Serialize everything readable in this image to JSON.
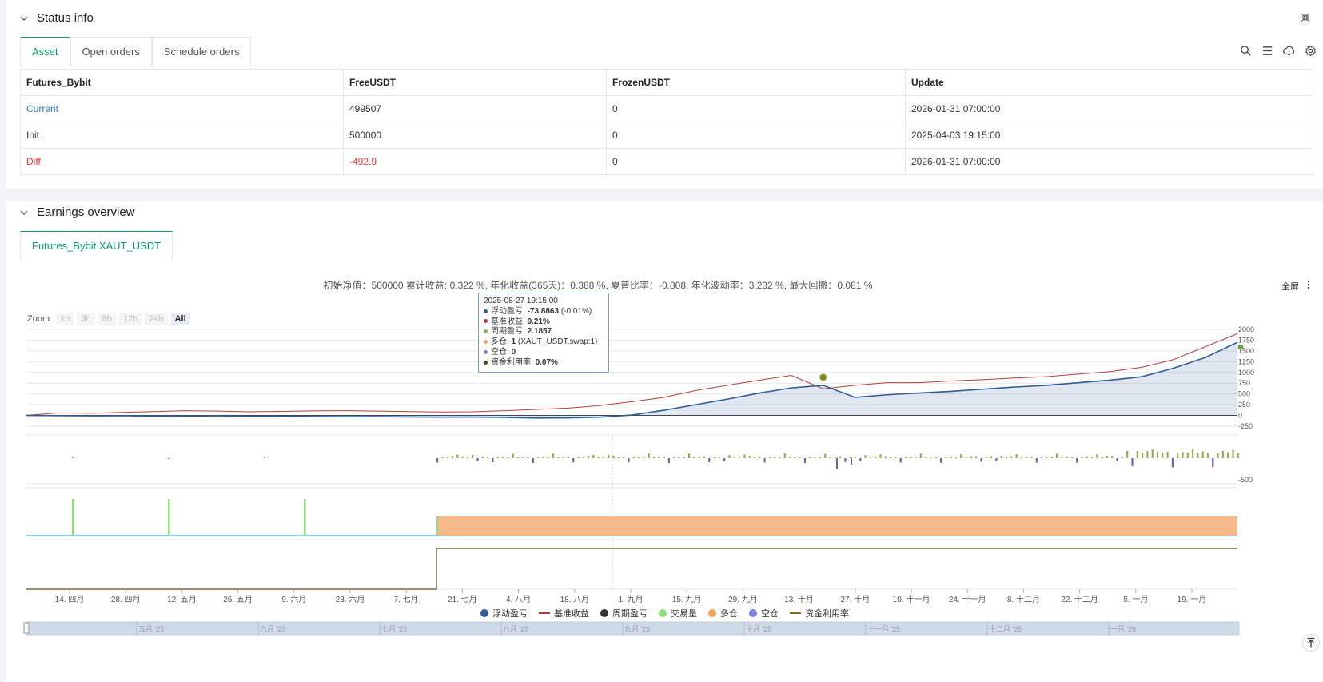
{
  "status": {
    "title": "Status info",
    "tabs": [
      "Asset",
      "Open orders",
      "Schedule orders"
    ],
    "table": {
      "headers": [
        "Futures_Bybit",
        "FreeUSDT",
        "FrozenUSDT",
        "Update"
      ],
      "rows": [
        [
          "Current",
          "499507",
          "0",
          "2026-01-31 07:00:00"
        ],
        [
          "Init",
          "500000",
          "0",
          "2025-04-03 19:15:00"
        ],
        [
          "Diff",
          "-492.9",
          "0",
          "2026-01-31 07:00:00"
        ]
      ]
    },
    "toolbar_icons": [
      "search-icon",
      "list-icon",
      "cloud-download-icon",
      "settings-icon"
    ]
  },
  "earnings": {
    "title": "Earnings overview",
    "tab": "Futures_Bybit.XAUT_USDT",
    "stats_line": "初始净值：500000 累计收益: 0.322 %, 年化收益(365天)：0.388 %, 夏普比率：-0.808, 年化波动率：3.232 %, 最大回撤：0.081 %",
    "fullscreen_label": "全屏",
    "zoom": {
      "label": "Zoom",
      "buttons": [
        "1h",
        "3h",
        "8h",
        "12h",
        "24h",
        "All"
      ],
      "active": "All"
    },
    "tooltip": {
      "time": "2025-08-27 19:15:00",
      "rows": [
        {
          "label": "浮动盈亏:",
          "value": "-73.8863",
          "extra": " (-0.01%)",
          "color": "#2e5b9a"
        },
        {
          "label": "基准收益:",
          "value": "9.21%",
          "extra": "",
          "color": "#b83b3b"
        },
        {
          "label": "周期盈亏:",
          "value": "2.1857",
          "extra": "",
          "color": "#8fb050"
        },
        {
          "label": "多仓:",
          "value": "1",
          "extra": " (XAUT_USDT.swap:1)",
          "color": "#f2a35e"
        },
        {
          "label": "空仓:",
          "value": "0",
          "extra": "",
          "color": "#7b7fe0"
        },
        {
          "label": "资金利用率:",
          "value": "0.07%",
          "extra": "",
          "color": "#5a4a1a"
        }
      ]
    },
    "y_ticks_main": [
      "2000",
      "1750",
      "1500",
      "1250",
      "1000",
      "750",
      "500",
      "250",
      "0",
      "-250"
    ],
    "y_tick_bar": "-500",
    "x_ticks": [
      "14. 四月",
      "28. 四月",
      "12. 五月",
      "26. 五月",
      "9. 六月",
      "23. 六月",
      "7. 七月",
      "21. 七月",
      "4. 八月",
      "18. 八月",
      "1. 九月",
      "15. 九月",
      "29. 九月",
      "13. 十月",
      "27. 十月",
      "10. 十一月",
      "24. 十一月",
      "8. 十二月",
      "22. 十二月",
      "5. 一月",
      "19. 一月"
    ],
    "navigator_ticks": [
      "五月 '25",
      "六月 '25",
      "七月 '25",
      "八月 '25",
      "九月 '25",
      "十月 '25",
      "十一月 '25",
      "十二月 '25",
      "一月 '26"
    ],
    "legend": [
      {
        "name": "浮动盈亏",
        "color": "#2e5b9a",
        "shape": "circle"
      },
      {
        "name": "基准收益",
        "color": "#b83b3b",
        "shape": "line"
      },
      {
        "name": "周期盈亏",
        "color": "#333333",
        "shape": "circle"
      },
      {
        "name": "交易量",
        "color": "#8be07a",
        "shape": "circle"
      },
      {
        "name": "多仓",
        "color": "#f2a35e",
        "shape": "circle"
      },
      {
        "name": "空仓",
        "color": "#7b7fe0",
        "shape": "circle"
      },
      {
        "name": "资金利用率",
        "color": "#7a6a1a",
        "shape": "line"
      }
    ]
  },
  "chart_data": {
    "type": "line",
    "series": [
      {
        "name": "浮动盈亏",
        "x_start": "2025-04-03",
        "x_end": "2026-01-31",
        "values": [
          0,
          -5,
          -10,
          -8,
          -15,
          -12,
          -10,
          -20,
          -18,
          -25,
          -30,
          -28,
          -35,
          -40,
          -38,
          -45,
          -60,
          -55,
          -40,
          10,
          120,
          250,
          380,
          520,
          640,
          700,
          420,
          480,
          520,
          560,
          610,
          660,
          700,
          760,
          820,
          900,
          1100,
          1350,
          1700
        ]
      },
      {
        "name": "基准收益",
        "x_start": "2025-04-03",
        "x_end": "2026-01-31",
        "values": [
          0,
          60,
          50,
          70,
          90,
          110,
          100,
          85,
          95,
          105,
          110,
          100,
          90,
          80,
          85,
          110,
          140,
          170,
          230,
          320,
          420,
          580,
          700,
          820,
          930,
          620,
          700,
          760,
          760,
          800,
          830,
          870,
          900,
          960,
          1020,
          1120,
          1300,
          1600,
          1900
        ]
      }
    ],
    "ylim": [
      -250,
      2000
    ]
  }
}
